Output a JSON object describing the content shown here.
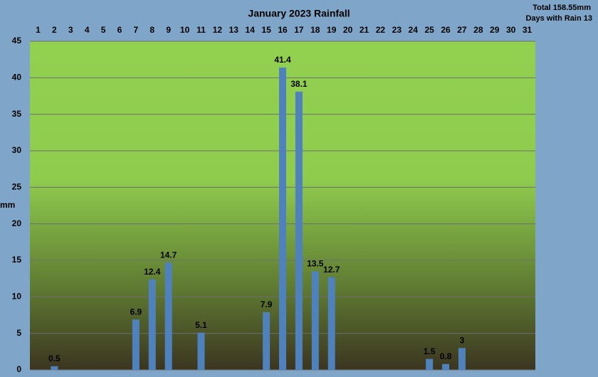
{
  "chart_data": {
    "type": "bar",
    "title": "January 2023 Rainfall",
    "total": "Total 158.55mm",
    "days_with_rain": "Days with Rain 13",
    "y_label": "mm",
    "categories": [
      "1",
      "2",
      "3",
      "4",
      "5",
      "6",
      "7",
      "8",
      "9",
      "10",
      "11",
      "12",
      "13",
      "14",
      "15",
      "16",
      "17",
      "18",
      "19",
      "20",
      "21",
      "22",
      "23",
      "24",
      "25",
      "26",
      "27",
      "28",
      "29",
      "30",
      "31"
    ],
    "values": [
      0,
      0.5,
      0,
      0,
      0,
      0,
      6.9,
      12.4,
      14.7,
      0,
      5.1,
      0,
      0,
      0,
      7.9,
      41.4,
      38.1,
      13.5,
      12.7,
      0,
      0,
      0,
      0,
      0,
      1.5,
      0.8,
      3,
      0,
      0,
      0,
      0
    ],
    "color": "#4f81bd",
    "ylim": [
      0,
      45
    ],
    "yticks": [
      0,
      5,
      10,
      15,
      20,
      25,
      30,
      35,
      40,
      45
    ],
    "grid": true
  }
}
